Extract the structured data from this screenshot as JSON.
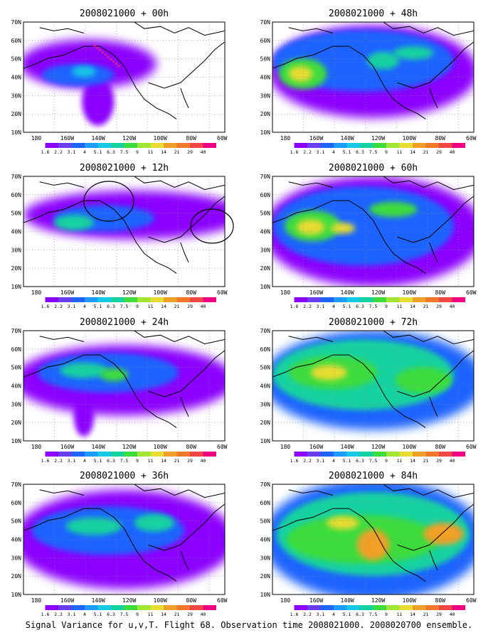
{
  "figure": {
    "caption": "Signal Variance for u,v,T. Flight 68. Observation time 2008021000. 2008020700 ensemble."
  },
  "axes": {
    "lat_labels": [
      "70N",
      "60N",
      "50N",
      "40N",
      "30N",
      "20N",
      "10N"
    ],
    "lon_labels": [
      "180",
      "160W",
      "140W",
      "120W",
      "100W",
      "80W",
      "60W"
    ]
  },
  "colorbar": {
    "labels": [
      "1.6",
      "2.2",
      "3.1",
      "4",
      "5.1",
      "6.3",
      "7.5",
      "9",
      "11",
      "14",
      "21",
      "29",
      "40"
    ],
    "colors": [
      "#ffffff",
      "#8b00ff",
      "#6a3df0",
      "#1e64ff",
      "#1e9bff",
      "#14c8e6",
      "#14d2a0",
      "#3cdc3c",
      "#a0e632",
      "#e6dc32",
      "#f0a028",
      "#f07828",
      "#f04646",
      "#f00082"
    ]
  },
  "panels": [
    {
      "title": "2008021000 + 00h"
    },
    {
      "title": "2008021000 + 48h"
    },
    {
      "title": "2008021000 + 12h"
    },
    {
      "title": "2008021000 + 60h"
    },
    {
      "title": "2008021000 + 24h"
    },
    {
      "title": "2008021000 + 72h"
    },
    {
      "title": "2008021000 + 36h"
    },
    {
      "title": "2008021000 + 84h"
    }
  ],
  "colors": {
    "purple": "#8b00ff",
    "blue": "#1e64ff",
    "cyan": "#14c8e6",
    "teal": "#14d2a0",
    "green": "#3cdc3c",
    "yellow": "#e6dc32",
    "orange": "#f0a028",
    "dropsonde": "#e0208c"
  }
}
